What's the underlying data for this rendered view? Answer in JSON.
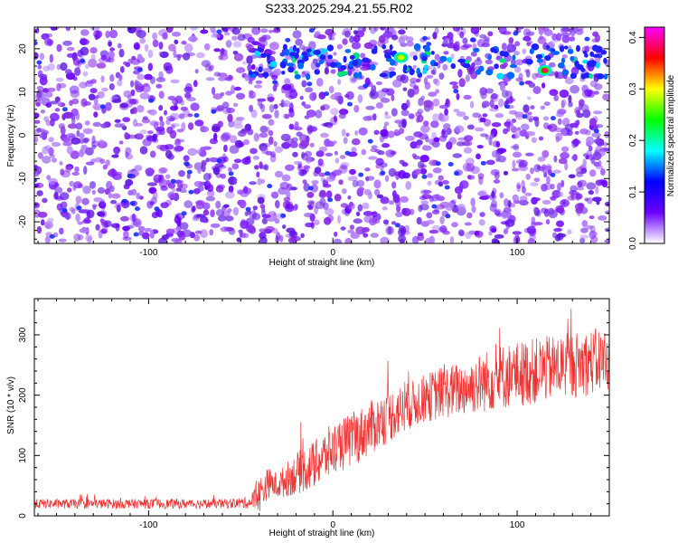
{
  "title": "S233.2025.294.21.55.R02",
  "chart_data": [
    {
      "type": "heatmap",
      "xlabel": "Height of straight line (km)",
      "ylabel": "Frequency (Hz)",
      "xlim": [
        -162,
        150
      ],
      "ylim": [
        -25,
        25
      ],
      "xticks": [
        "-100",
        "0",
        "100"
      ],
      "yticks": [
        "-20",
        "-10",
        "0",
        "10",
        "20"
      ],
      "colorbar": {
        "label": "Normalized spectral amplitude",
        "range": [
          0.0,
          0.42
        ],
        "ticks": [
          "0.0",
          "0.1",
          "0.2",
          "0.3",
          "0.4"
        ],
        "colors": [
          "#ffffff",
          "#6a00ff",
          "#0000ff",
          "#00ffff",
          "#00ff00",
          "#ffff00",
          "#ff0000",
          "#ff00ff"
        ]
      },
      "features": [
        {
          "note": "band of elevated amplitude near +17 Hz",
          "x": [
            -45,
            150
          ],
          "y": 17
        },
        {
          "peak_x": 37,
          "peak_y": 18,
          "amplitude": 0.25
        },
        {
          "peak_x": 115,
          "peak_y": 15,
          "amplitude": 0.38
        }
      ]
    },
    {
      "type": "line",
      "xlabel": "Height of straight line (km)",
      "ylabel": "SNR (10 * v/v)",
      "xlim": [
        -162,
        150
      ],
      "ylim": [
        0,
        360
      ],
      "xticks": [
        "-100",
        "0",
        "100"
      ],
      "yticks": [
        "0",
        "100",
        "200",
        "300"
      ],
      "series": [
        {
          "color": "#ee3333",
          "x": [
            -162,
            -140,
            -120,
            -100,
            -80,
            -60,
            -45,
            -40,
            -35,
            -30,
            -20,
            -10,
            0,
            10,
            20,
            30,
            40,
            50,
            60,
            70,
            80,
            90,
            100,
            110,
            120,
            130,
            140,
            150
          ],
          "y": [
            20,
            20,
            20,
            20,
            20,
            20,
            22,
            35,
            55,
            50,
            70,
            85,
            110,
            125,
            145,
            165,
            180,
            195,
            205,
            210,
            220,
            230,
            235,
            240,
            245,
            250,
            255,
            260
          ],
          "noise": [
            8,
            8,
            8,
            8,
            8,
            8,
            10,
            30,
            25,
            22,
            35,
            40,
            45,
            45,
            45,
            45,
            40,
            40,
            45,
            45,
            50,
            55,
            55,
            55,
            55,
            55,
            55,
            55
          ]
        }
      ]
    }
  ]
}
